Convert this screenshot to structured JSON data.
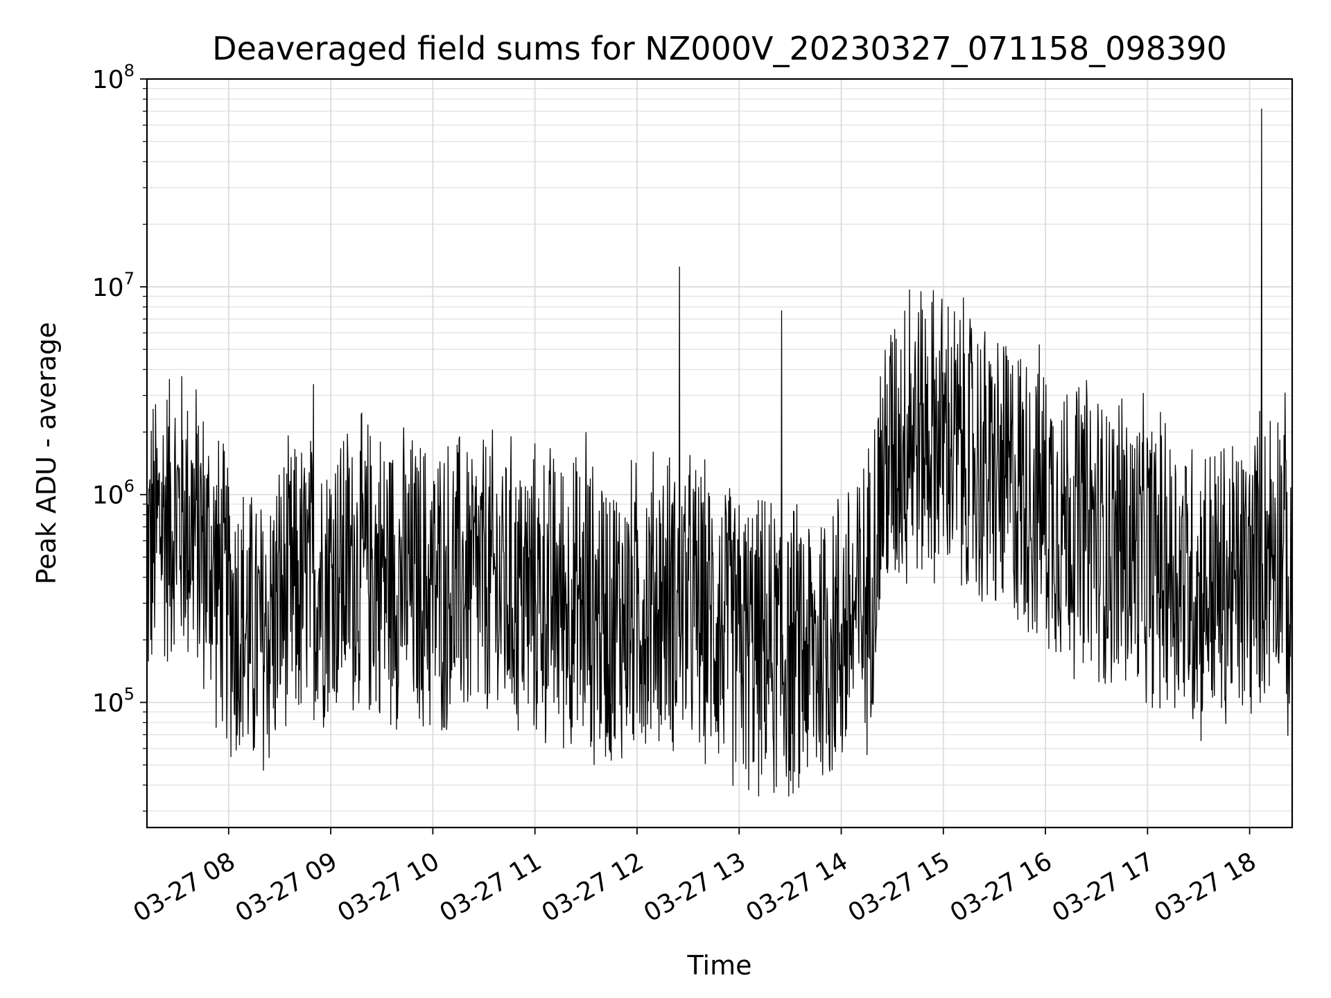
{
  "chart_data": {
    "type": "line",
    "title": "Deaveraged field sums for NZ000V_20230327_071158_098390",
    "xlabel": "Time",
    "ylabel": "Peak ADU - average",
    "yscale": "log",
    "xlim": [
      "03-27 07:12",
      "03-27 18:25"
    ],
    "ylim": [
      25000,
      100000000
    ],
    "x_ticks": [
      "03-27 08",
      "03-27 09",
      "03-27 10",
      "03-27 11",
      "03-27 12",
      "03-27 13",
      "03-27 14",
      "03-27 15",
      "03-27 16",
      "03-27 17",
      "03-27 18"
    ],
    "y_ticks": [
      {
        "base": "10",
        "exp": "5",
        "value": 100000
      },
      {
        "base": "10",
        "exp": "6",
        "value": 1000000
      },
      {
        "base": "10",
        "exp": "7",
        "value": 10000000
      },
      {
        "base": "10",
        "exp": "8",
        "value": 100000000
      }
    ],
    "grid": true,
    "line_color": "#000000",
    "series": [
      {
        "x": [
          "03-27 07:12",
          "03-27 07:20",
          "03-27 07:30",
          "03-27 07:40",
          "03-27 07:50",
          "03-27 08:00",
          "03-27 08:10",
          "03-27 08:20",
          "03-27 08:30",
          "03-27 08:40",
          "03-27 08:50",
          "03-27 09:00",
          "03-27 09:15",
          "03-27 09:30",
          "03-27 09:45",
          "03-27 10:00",
          "03-27 10:15",
          "03-27 10:30",
          "03-27 10:45",
          "03-27 11:00",
          "03-27 11:15",
          "03-27 11:30",
          "03-27 11:45",
          "03-27 12:00",
          "03-27 12:15",
          "03-27 12:30",
          "03-27 12:45",
          "03-27 13:00",
          "03-27 13:15",
          "03-27 13:30",
          "03-27 13:45",
          "03-27 14:00",
          "03-27 14:15",
          "03-27 14:25",
          "03-27 14:35",
          "03-27 14:45",
          "03-27 15:00",
          "03-27 15:15",
          "03-27 15:30",
          "03-27 15:45",
          "03-27 16:00",
          "03-27 16:15",
          "03-27 16:30",
          "03-27 16:45",
          "03-27 17:00",
          "03-27 17:15",
          "03-27 17:30",
          "03-27 17:45",
          "03-27 18:00",
          "03-27 18:10",
          "03-27 18:20",
          "03-27 18:25"
        ],
        "y": [
          480000,
          750000,
          800000,
          700000,
          450000,
          300000,
          220000,
          200000,
          300000,
          350000,
          380000,
          420000,
          450000,
          420000,
          380000,
          350000,
          380000,
          380000,
          350000,
          330000,
          320000,
          280000,
          250000,
          280000,
          320000,
          300000,
          250000,
          200000,
          180000,
          170000,
          180000,
          220000,
          300000,
          1300000,
          1800000,
          2000000,
          1900000,
          1500000,
          1200000,
          1100000,
          900000,
          750000,
          650000,
          550000,
          500000,
          450000,
          350000,
          350000,
          400000,
          550000,
          700000,
          150000
        ]
      }
    ],
    "spikes": [
      {
        "x": "03-27 08:50",
        "y": 3400000
      },
      {
        "x": "03-27 11:30",
        "y": 2000000
      },
      {
        "x": "03-27 12:25",
        "y": 12500000
      },
      {
        "x": "03-27 13:25",
        "y": 7700000
      },
      {
        "x": "03-27 14:40",
        "y": 9700000
      },
      {
        "x": "03-27 16:45",
        "y": 2900000
      },
      {
        "x": "03-27 18:07",
        "y": 72000000
      }
    ]
  }
}
